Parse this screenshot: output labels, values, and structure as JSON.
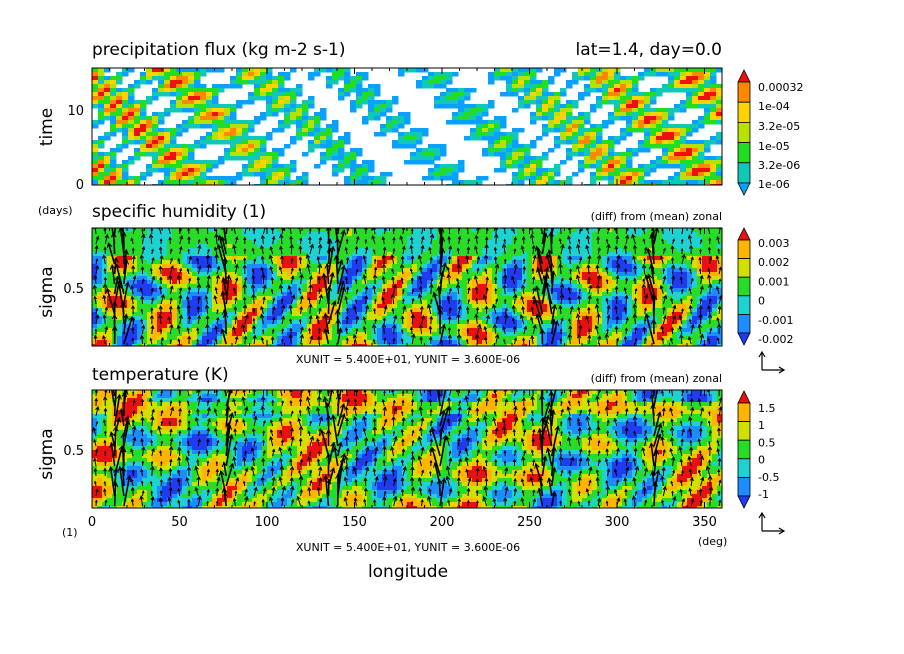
{
  "chart_data": [
    {
      "type": "heatmap",
      "title": "precipitation flux (kg m-2 s-1)",
      "subtitle": "lat=1.4, day=0.0",
      "ylabel": "time",
      "yunit": "(days)",
      "ylim": [
        0,
        15
      ],
      "yticks": [
        0,
        10
      ],
      "colorbar": [
        "0.00032",
        "1e-04",
        "3.2e-05",
        "1e-05",
        "3.2e-06",
        "1e-06"
      ],
      "colors": [
        "#0aa0ff",
        "#10c8b8",
        "#22dd22",
        "#b8e000",
        "#ffd200",
        "#ff8800",
        "#ee1010"
      ]
    },
    {
      "type": "heatmap",
      "title": "specific humidity (1)",
      "subtitle": "(diff) from (mean) zonal",
      "ylabel": "sigma",
      "ylim": [
        0.1,
        1.0
      ],
      "yticks": [
        "0.5"
      ],
      "colorbar": [
        "0.003",
        "0.002",
        "0.001",
        "0",
        "-0.001",
        "-0.002"
      ],
      "colors": [
        "#1f3cf0",
        "#1c8cff",
        "#1ed2d2",
        "#28dc28",
        "#d2e000",
        "#ffb400",
        "#e81010"
      ],
      "vector_units": "XUNIT = 5.400E+01, YUNIT = 3.600E-06"
    },
    {
      "type": "heatmap",
      "title": "temperature (K)",
      "subtitle": "(diff) from (mean) zonal",
      "ylabel": "sigma",
      "yunit": "(1)",
      "ylim": [
        0.1,
        1.0
      ],
      "yticks": [
        "0.5"
      ],
      "xlabel": "longitude",
      "xunit": "(deg)",
      "xlim": [
        0,
        360
      ],
      "xticks": [
        "0",
        "50",
        "100",
        "150",
        "200",
        "250",
        "300",
        "350"
      ],
      "colorbar": [
        "1.5",
        "1",
        "0.5",
        "0",
        "-0.5",
        "-1"
      ],
      "colors": [
        "#1f3cf0",
        "#1c8cff",
        "#1ed2d2",
        "#28dc28",
        "#d2e000",
        "#ffb400",
        "#e81010"
      ],
      "vector_units": "XUNIT = 5.400E+01, YUNIT = 3.600E-06"
    }
  ]
}
